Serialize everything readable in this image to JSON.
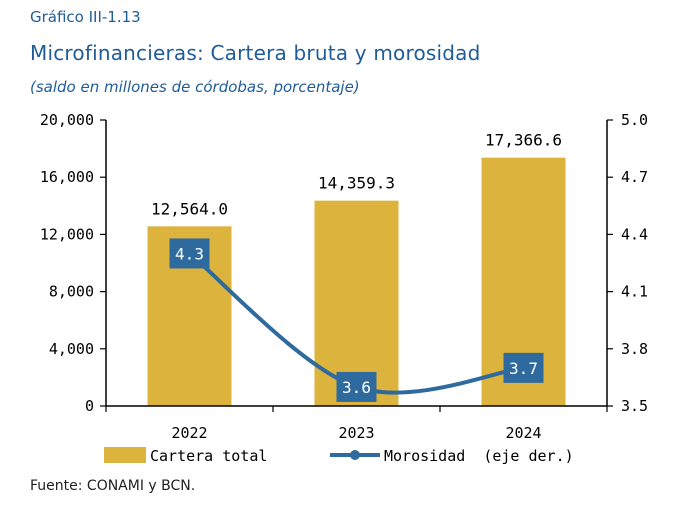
{
  "header": {
    "kicker": "Gráfico III-1.13",
    "title": "Microfinancieras: Cartera bruta y morosidad",
    "subtitle": "(saldo en millones de córdobas, porcentaje)"
  },
  "footer": {
    "source": "Fuente: CONAMI y BCN."
  },
  "colors": {
    "bar": "#dcb33c",
    "line": "#2e6a9e",
    "label_box": "#2e6a9e",
    "text": "#1f5c99",
    "axis": "#000000"
  },
  "chart_data": {
    "type": "bar",
    "categories": [
      "2022",
      "2023",
      "2024"
    ],
    "series": [
      {
        "name": "Cartera total",
        "type": "bar",
        "axis": "left",
        "values": [
          12564.0,
          14359.3,
          17366.6
        ],
        "labels": [
          "12,564.0",
          "14,359.3",
          "17,366.6"
        ]
      },
      {
        "name": "Morosidad  (eje der.)",
        "type": "line",
        "axis": "right",
        "values": [
          4.3,
          3.6,
          3.7
        ],
        "labels": [
          "4.3",
          "3.6",
          "3.7"
        ]
      }
    ],
    "left_axis": {
      "ylim": [
        0,
        20000
      ],
      "ticks": [
        0,
        4000,
        8000,
        12000,
        16000,
        20000
      ],
      "tick_labels": [
        "0",
        "4,000",
        "8,000",
        "12,000",
        "16,000",
        "20,000"
      ]
    },
    "right_axis": {
      "ylim": [
        3.5,
        5.0
      ],
      "ticks": [
        3.5,
        3.8,
        4.1,
        4.4,
        4.7,
        5.0
      ],
      "tick_labels": [
        "3.5",
        "3.8",
        "4.1",
        "4.4",
        "4.7",
        "5.0"
      ]
    },
    "legend": {
      "placement": "bottom",
      "entries": [
        "Cartera total",
        "Morosidad  (eje der.)"
      ]
    },
    "grid": false
  }
}
